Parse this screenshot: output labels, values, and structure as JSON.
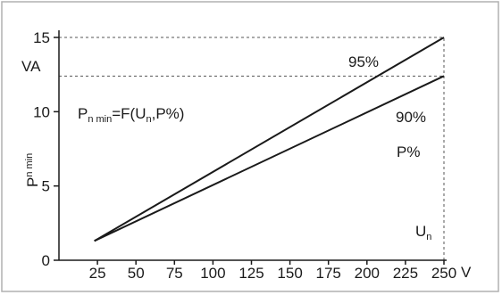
{
  "chart_data": {
    "type": "line",
    "x_unit": "V",
    "y_unit": "VA",
    "xlim": [
      0,
      250
    ],
    "ylim": [
      0,
      15
    ],
    "x_ticks": [
      {
        "value": 25,
        "label": "25"
      },
      {
        "value": 50,
        "label": "50"
      },
      {
        "value": 75,
        "label": "75"
      },
      {
        "value": 100,
        "label": "100"
      },
      {
        "value": 125,
        "label": "125"
      },
      {
        "value": 150,
        "label": "150"
      },
      {
        "value": 175,
        "label": "175"
      },
      {
        "value": 200,
        "label": "200"
      },
      {
        "value": 225,
        "label": "225"
      },
      {
        "value": 250,
        "label": "250"
      }
    ],
    "y_ticks": [
      {
        "value": 0,
        "label": "0"
      },
      {
        "value": 5,
        "label": "5"
      },
      {
        "value": 10,
        "label": "10"
      },
      {
        "value": 15,
        "label": "15"
      }
    ],
    "series": [
      {
        "name": "95%",
        "points": [
          [
            23,
            1.3
          ],
          [
            250,
            15
          ]
        ]
      },
      {
        "name": "90%",
        "points": [
          [
            23,
            1.3
          ],
          [
            250,
            12.4
          ]
        ]
      }
    ],
    "reference_lines": [
      {
        "y": 15,
        "x_to": 250,
        "style": "dashed"
      },
      {
        "y": 12.4,
        "x_to": 250,
        "style": "dashed"
      },
      {
        "x": 250,
        "y_from": 0,
        "y_to": 15,
        "style": "dashed"
      }
    ],
    "ylabel": {
      "main": "P",
      "sub": "n min"
    },
    "formula": {
      "part1": "P",
      "part1_sub": "n min",
      "part2": "=F(U",
      "part2_sub": "n",
      "part3": ",P%)"
    },
    "annotations": {
      "p_percent": "P%",
      "un_main": "U",
      "un_sub": "n"
    },
    "colors": {
      "frame": "#b0b0b0",
      "axis": "#1a1a1a",
      "series": "#1a1a1a",
      "dashed": "#555555"
    },
    "grid": false
  }
}
